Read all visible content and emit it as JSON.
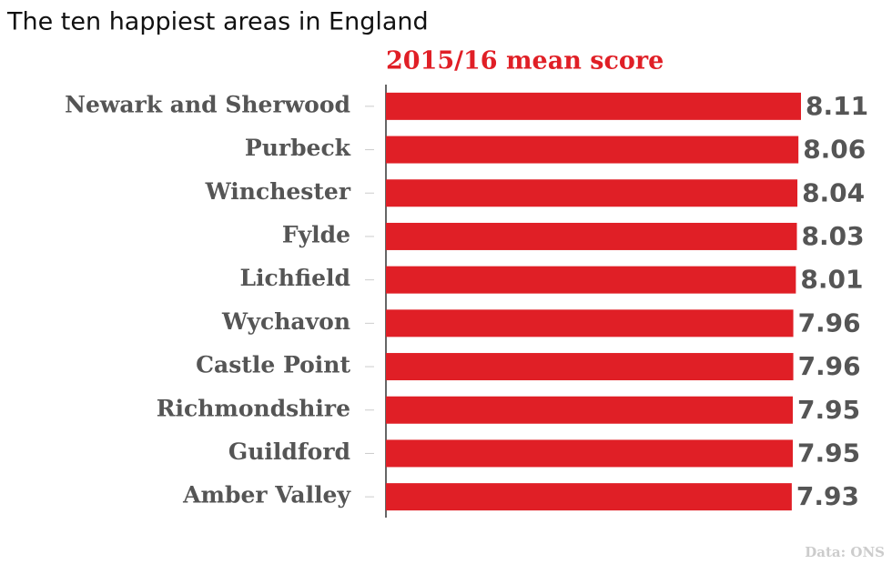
{
  "chart_data": {
    "type": "bar",
    "orientation": "horizontal",
    "title": "The ten happiest areas in England",
    "subtitle": "2015/16 mean score",
    "source": "Data: ONS",
    "categories": [
      "Newark and Sherwood",
      "Purbeck",
      "Winchester",
      "Fylde",
      "Lichfield",
      "Wychavon",
      "Castle Point",
      "Richmondshire",
      "Guildford",
      "Amber Valley"
    ],
    "values": [
      8.11,
      8.06,
      8.04,
      8.03,
      8.01,
      7.96,
      7.96,
      7.95,
      7.95,
      7.93
    ],
    "color": "#e01f26",
    "xlim": [
      0,
      8.11
    ]
  }
}
